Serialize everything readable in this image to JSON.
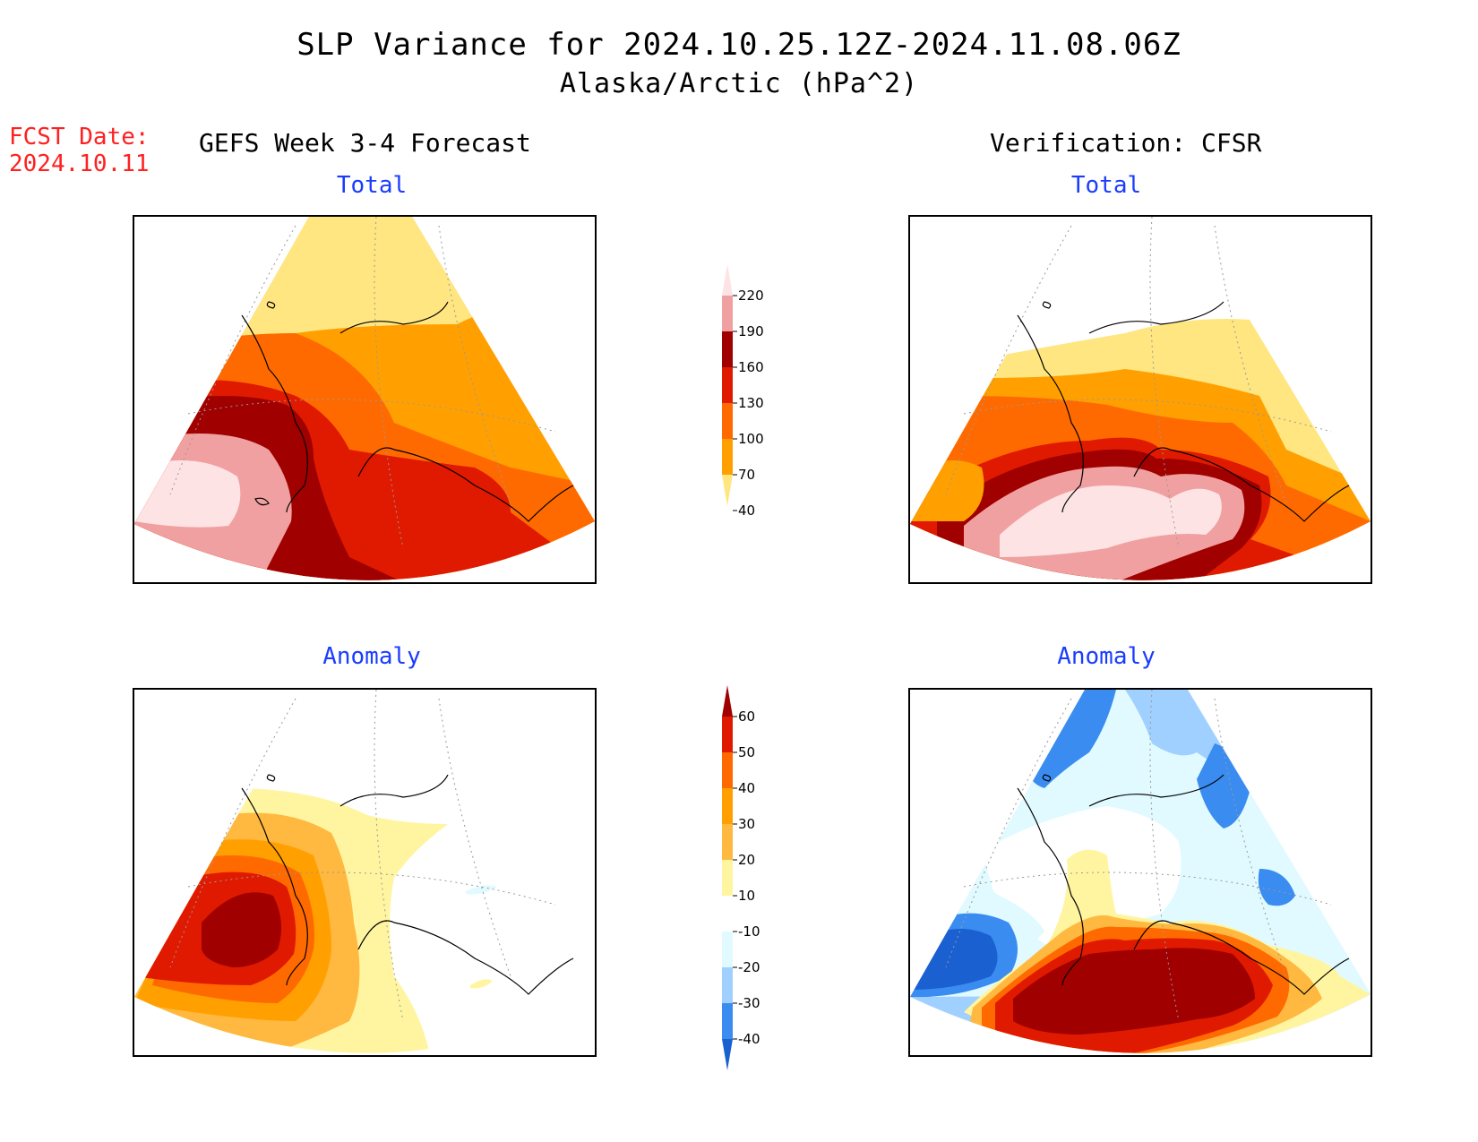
{
  "title": {
    "line1": "SLP Variance for 2024.10.25.12Z-2024.11.08.06Z",
    "line2": "Alaska/Arctic (hPa^2)"
  },
  "fcst_date": {
    "label": "FCST Date:",
    "value": "2024.10.11"
  },
  "columns": {
    "left": "GEFS Week 3-4 Forecast",
    "right": "Verification: CFSR"
  },
  "panels": {
    "forecast_total": "Total",
    "verification_total": "Total",
    "forecast_anomaly": "Anomaly",
    "verification_anomaly": "Anomaly"
  },
  "colorbars": {
    "total": {
      "levels": [
        "220",
        "190",
        "160",
        "130",
        "100",
        "70",
        "40"
      ],
      "colors": [
        "#fde3e3",
        "#f0a0a0",
        "#a00000",
        "#e01a00",
        "#ff6a00",
        "#ffa000",
        "#ffe680"
      ]
    },
    "anomaly": {
      "levels": [
        "60",
        "50",
        "40",
        "30",
        "20",
        "10",
        "-10",
        "-20",
        "-30",
        "-40"
      ],
      "colors": [
        "#a00000",
        "#e01a00",
        "#ff6a00",
        "#ffa000",
        "#ffb840",
        "#fff5a0",
        "#ffffff",
        "#e0faff",
        "#9fd0ff",
        "#3a8cf0",
        "#1a60d0"
      ]
    }
  }
}
